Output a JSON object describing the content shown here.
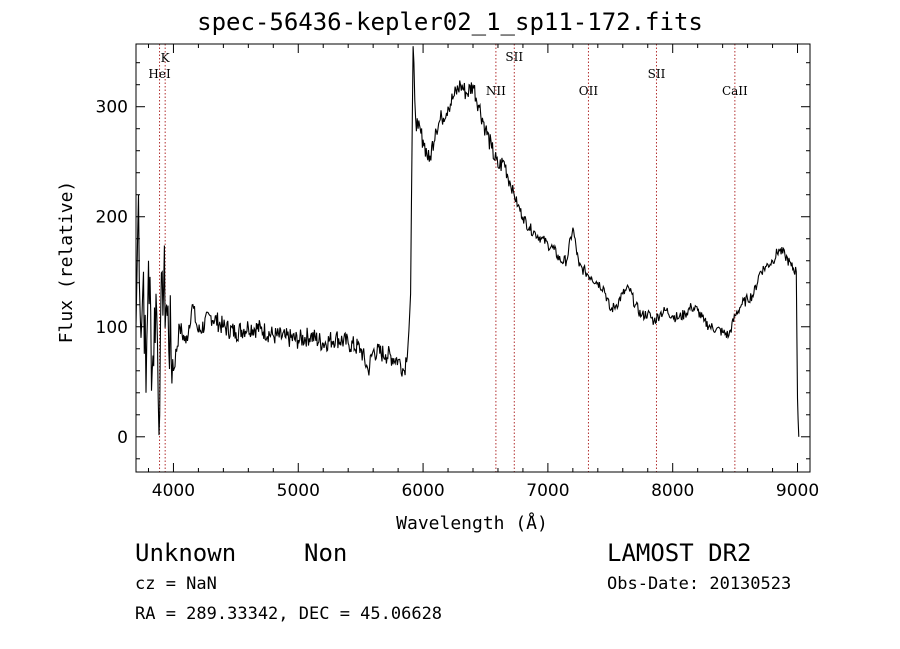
{
  "chart_data": {
    "type": "line",
    "title": "spec-56436-kepler02_1_sp11-172.fits",
    "xlabel": "Wavelength (Å)",
    "ylabel": "Flux (relative)",
    "xlim": [
      3700,
      9100
    ],
    "ylim": [
      -32,
      357
    ],
    "x_ticks": [
      4000,
      5000,
      6000,
      7000,
      8000,
      9000
    ],
    "y_ticks": [
      0,
      100,
      200,
      300
    ],
    "grid": false,
    "series": [
      {
        "x": [
          3700,
          3720,
          3740,
          3760,
          3780,
          3800,
          3830,
          3860,
          3890,
          3910,
          3950,
          4000,
          4050,
          4100,
          4150,
          4200,
          4300,
          4400,
          4500,
          4600,
          4700,
          4800,
          4900,
          5000,
          5100,
          5200,
          5300,
          5400,
          5500,
          5560,
          5600,
          5700,
          5800,
          5850,
          5880,
          5900,
          5920,
          5940,
          5960,
          6000,
          6050,
          6100,
          6150,
          6200,
          6250,
          6300,
          6350,
          6400,
          6450,
          6500,
          6550,
          6600,
          6650,
          6700,
          6730,
          6760,
          6800,
          6850,
          6900,
          6950,
          7000,
          7050,
          7100,
          7150,
          7200,
          7250,
          7300,
          7350,
          7400,
          7450,
          7500,
          7550,
          7600,
          7650,
          7700,
          7750,
          7800,
          7850,
          7900,
          7950,
          8000,
          8050,
          8100,
          8150,
          8200,
          8250,
          8300,
          8350,
          8400,
          8450,
          8500,
          8550,
          8600,
          8650,
          8700,
          8750,
          8800,
          8850,
          8900,
          8950,
          8990,
          9000,
          9010
        ],
        "y": [
          100,
          220,
          90,
          150,
          40,
          160,
          60,
          130,
          20,
          150,
          110,
          60,
          100,
          85,
          120,
          95,
          110,
          100,
          95,
          100,
          98,
          92,
          90,
          88,
          92,
          85,
          90,
          85,
          80,
          60,
          78,
          75,
          70,
          60,
          85,
          130,
          355,
          290,
          280,
          270,
          250,
          280,
          290,
          300,
          310,
          320,
          312,
          320,
          300,
          280,
          262,
          245,
          250,
          230,
          220,
          210,
          200,
          190,
          185,
          180,
          175,
          170,
          160,
          160,
          190,
          155,
          150,
          145,
          140,
          135,
          115,
          120,
          130,
          135,
          120,
          110,
          112,
          105,
          112,
          115,
          110,
          108,
          112,
          118,
          115,
          105,
          100,
          98,
          95,
          92,
          110,
          120,
          125,
          130,
          150,
          155,
          160,
          170,
          165,
          155,
          150,
          35,
          0
        ]
      }
    ],
    "lines": [
      {
        "label": "K",
        "x": 3933.7
      },
      {
        "label": "HeI",
        "x": 3888.6
      },
      {
        "label": "NII",
        "x": 6583.4
      },
      {
        "label": "SII",
        "x": 6730.8
      },
      {
        "label": "OII",
        "x": 7325.0
      },
      {
        "label": "SII",
        "x": 7870.0
      },
      {
        "label": "CaII",
        "x": 8498.0
      }
    ]
  },
  "info": {
    "class": "Unknown",
    "subclass": "Non",
    "survey": "LAMOST DR2",
    "cz": "cz = NaN",
    "obs_date": "Obs-Date: 20130523",
    "radec": "RA = 289.33342, DEC =  45.06628"
  }
}
